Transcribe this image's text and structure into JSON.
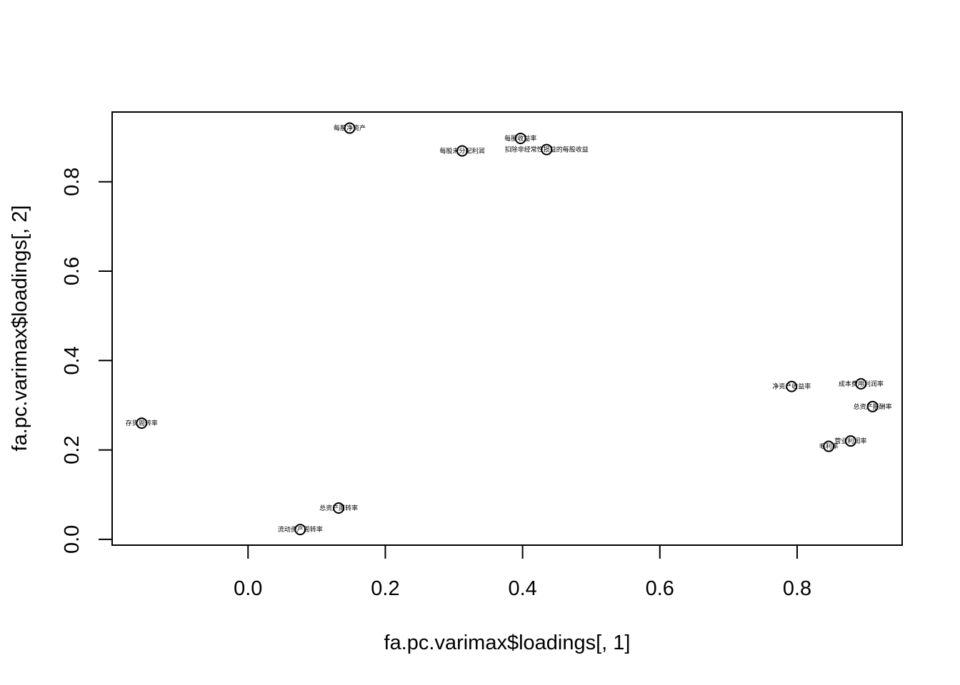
{
  "chart_data": {
    "type": "scatter",
    "title": "",
    "xlabel": "fa.pc.varimax$loadings[, 1]",
    "ylabel": "fa.pc.varimax$loadings[, 2]",
    "xlim": [
      -0.198,
      0.953
    ],
    "ylim": [
      -0.013,
      0.956
    ],
    "xticks": [
      0.0,
      0.2,
      0.4,
      0.6,
      0.8
    ],
    "xtick_labels": [
      "0.0",
      "0.2",
      "0.4",
      "0.6",
      "0.8"
    ],
    "yticks": [
      0.0,
      0.2,
      0.4,
      0.6,
      0.8
    ],
    "ytick_labels": [
      "0.0",
      "0.2",
      "0.4",
      "0.6",
      "0.8"
    ],
    "grid": false,
    "marker": "open-circle",
    "color": "#000000",
    "points": [
      {
        "label": "每股净资产",
        "x": 0.148,
        "y": 0.92
      },
      {
        "label": "每股未分配利润",
        "x": 0.312,
        "y": 0.869
      },
      {
        "label": "每股收益率",
        "x": 0.397,
        "y": 0.897
      },
      {
        "label": "扣除非经常性损益的每股收益",
        "x": 0.435,
        "y": 0.872
      },
      {
        "label": "净资产收益率",
        "x": 0.792,
        "y": 0.342
      },
      {
        "label": "成本费用利润率",
        "x": 0.893,
        "y": 0.348
      },
      {
        "label": "总资产报酬率",
        "x": 0.91,
        "y": 0.297
      },
      {
        "label": "营业利润率",
        "x": 0.878,
        "y": 0.22
      },
      {
        "label": "毛利率",
        "x": 0.846,
        "y": 0.208
      },
      {
        "label": "存货周转率",
        "x": -0.155,
        "y": 0.26
      },
      {
        "label": "总资产周转率",
        "x": 0.132,
        "y": 0.07
      },
      {
        "label": "流动资产周转率",
        "x": 0.076,
        "y": 0.022
      }
    ]
  }
}
